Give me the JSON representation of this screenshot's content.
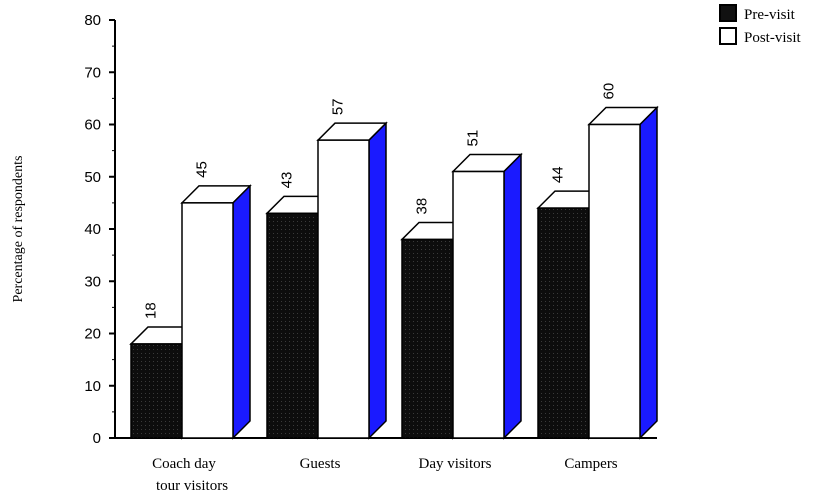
{
  "chart_data": {
    "type": "bar",
    "title": "",
    "xlabel": "",
    "ylabel": "Percentage of respondents",
    "ylim": [
      0,
      80
    ],
    "yticks": [
      0,
      10,
      20,
      30,
      40,
      50,
      60,
      70,
      80
    ],
    "categories": [
      [
        "Coach day",
        "tour visitors"
      ],
      [
        "Guests"
      ],
      [
        "Day visitors"
      ],
      [
        "Campers"
      ]
    ],
    "series": [
      {
        "name": "Pre-visit",
        "values": [
          18,
          43,
          38,
          44
        ],
        "color": "#111111"
      },
      {
        "name": "Post-visit",
        "values": [
          45,
          57,
          51,
          60
        ],
        "color": "#ffffff",
        "side_color": "#1a1aff"
      }
    ],
    "grid": false,
    "legend_position": "top-right",
    "style": "3d-bars"
  }
}
